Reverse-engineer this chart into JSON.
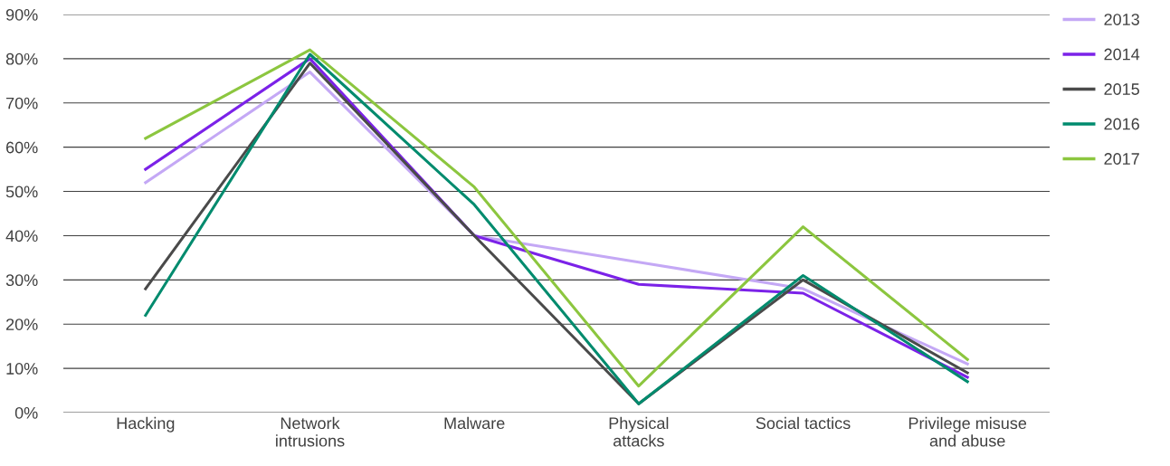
{
  "chart_data": {
    "type": "line",
    "categories": [
      "Hacking",
      "Network\nintrusions",
      "Malware",
      "Physical\nattacks",
      "Social tactics",
      "Privilege misuse\nand abuse"
    ],
    "series": [
      {
        "name": "2013",
        "color": "#c4a8f5",
        "values": [
          52,
          77,
          40,
          34,
          28,
          11
        ]
      },
      {
        "name": "2014",
        "color": "#7b22e8",
        "values": [
          55,
          80,
          40,
          29,
          27,
          8
        ]
      },
      {
        "name": "2015",
        "color": "#4a4a4a",
        "values": [
          28,
          79,
          40,
          2,
          30,
          9
        ]
      },
      {
        "name": "2016",
        "color": "#008b6e",
        "values": [
          22,
          81,
          47,
          2,
          31,
          7
        ]
      },
      {
        "name": "2017",
        "color": "#8cc63f",
        "values": [
          62,
          82,
          51,
          6,
          42,
          12
        ]
      }
    ],
    "ylim": [
      0,
      90
    ],
    "yticks": [
      {
        "value": 0,
        "label": "0%"
      },
      {
        "value": 10,
        "label": "10%"
      },
      {
        "value": 20,
        "label": "20%"
      },
      {
        "value": 30,
        "label": "30%"
      },
      {
        "value": 40,
        "label": "40%"
      },
      {
        "value": 50,
        "label": "50%"
      },
      {
        "value": 60,
        "label": "60%"
      },
      {
        "value": 70,
        "label": "70%"
      },
      {
        "value": 80,
        "label": "80%"
      },
      {
        "value": 90,
        "label": "90%"
      }
    ],
    "grid": "y",
    "legend": "right",
    "marker": "none",
    "line_style": "solid"
  }
}
